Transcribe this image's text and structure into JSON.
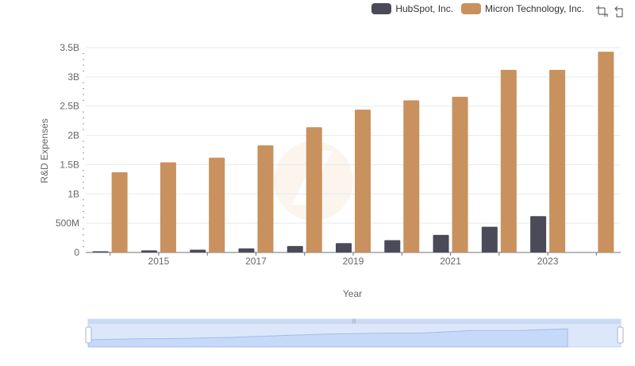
{
  "legend": [
    {
      "name": "HubSpot, Inc.",
      "color": "#4a4a58"
    },
    {
      "name": "Micron Technology, Inc.",
      "color": "#c8915e"
    }
  ],
  "toolbox": {
    "icons": [
      "zoom-icon",
      "restore-icon"
    ]
  },
  "chart_data": {
    "type": "bar",
    "xlabel": "Year",
    "ylabel": "R&D Expenses",
    "ylim": [
      0,
      3500000000
    ],
    "yticks": [
      "0",
      "500M",
      "1B",
      "1.5B",
      "2B",
      "2.5B",
      "3B",
      "3.5B"
    ],
    "xtick_labels": [
      "2015",
      "2017",
      "2019",
      "2021",
      "2023"
    ],
    "categories": [
      "2014",
      "2015",
      "2016",
      "2017",
      "2018",
      "2019",
      "2020",
      "2021",
      "2022",
      "2023",
      "2024"
    ],
    "series": [
      {
        "name": "HubSpot, Inc.",
        "color": "#4a4a58",
        "values": [
          20000000,
          35000000,
          48000000,
          70000000,
          110000000,
          160000000,
          210000000,
          300000000,
          440000000,
          620000000,
          null
        ]
      },
      {
        "name": "Micron Technology, Inc.",
        "color": "#c8915e",
        "values": [
          1370000000,
          1540000000,
          1620000000,
          1830000000,
          2140000000,
          2440000000,
          2600000000,
          2660000000,
          3120000000,
          3120000000,
          3430000000
        ]
      }
    ],
    "grid": true,
    "legend_position": "top-right"
  }
}
